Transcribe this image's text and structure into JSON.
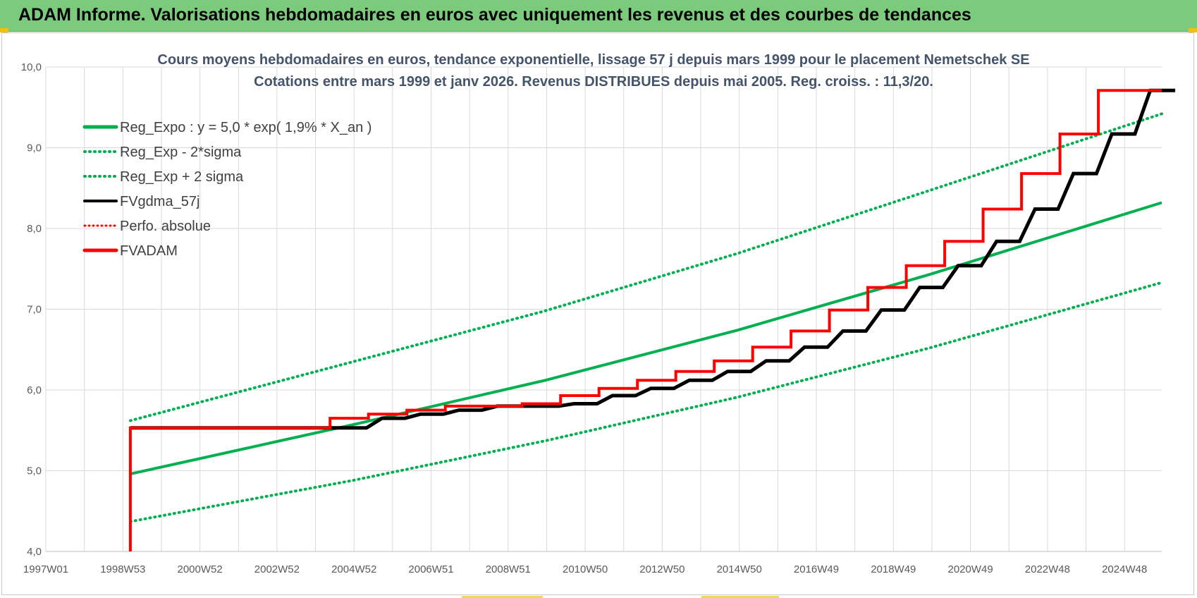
{
  "header": {
    "title": "ADAM Informe. Valorisations hebdomadaires en euros avec uniquement les revenus et des courbes de tendances"
  },
  "colors": {
    "banner": "#7ccb7d",
    "green": "#00b050",
    "black": "#000000",
    "red": "#ff0000",
    "title": "#44546a"
  },
  "chart_data": {
    "type": "line",
    "title": "Cours moyens  hebdomadaires en euros, tendance exponentielle, lissage 57 j depuis mars 1999 pour le placement Nemetschek SE",
    "subtitle": "Cotations entre mars 1999 et janv 2026. Revenus DISTRIBUES depuis mai 2005. Reg. croiss. : 11,3/20.",
    "xlabel": "",
    "ylabel": "",
    "ylim": [
      4.0,
      10.0
    ],
    "y_ticks": [
      "4,0",
      "5,0",
      "6,0",
      "7,0",
      "8,0",
      "9,0",
      "10,0"
    ],
    "x_ticks": [
      "1997W01",
      "1998W53",
      "2000W52",
      "2002W52",
      "2004W52",
      "2006W51",
      "2008W51",
      "2010W50",
      "2012W50",
      "2014W50",
      "2016W49",
      "2018W49",
      "2020W49",
      "2022W48",
      "2024W48"
    ],
    "xlim_years": [
      1997.0,
      2026.05
    ],
    "grid": true,
    "legend_position": "top-left",
    "regression": {
      "a": 5.0,
      "rate_pct": 1.9,
      "start_year": 1999.2,
      "end_year": 2026.05
    },
    "series": [
      {
        "name": "Reg_Expo : y = 5,0 * exp( 1,9% *  X_an )",
        "style": "solid",
        "color": "#00b050",
        "x": [
          1999.2,
          2005,
          2010,
          2015,
          2020,
          2026.05
        ],
        "y": [
          4.96,
          5.57,
          6.12,
          6.74,
          7.43,
          8.32
        ]
      },
      {
        "name": "Reg_Exp - 2*sigma",
        "style": "dotted",
        "color": "#00b050",
        "x": [
          1999.2,
          2005,
          2010,
          2015,
          2020,
          2026.05
        ],
        "y": [
          4.37,
          4.88,
          5.37,
          5.91,
          6.52,
          7.33
        ]
      },
      {
        "name": "Reg_Exp + 2 sigma",
        "style": "dotted",
        "color": "#00b050",
        "x": [
          1999.2,
          2005,
          2010,
          2015,
          2020,
          2026.05
        ],
        "y": [
          5.62,
          6.35,
          6.98,
          7.69,
          8.47,
          9.42
        ]
      },
      {
        "name": "FVgdma_57j",
        "style": "solid",
        "color": "#000000",
        "x": [
          1999.2,
          2004.4,
          2005.4,
          2006.4,
          2007.4,
          2008.4,
          2009.4,
          2010.4,
          2011.4,
          2012.4,
          2013.4,
          2014.4,
          2015.4,
          2016.4,
          2017.4,
          2018.4,
          2019.4,
          2020.4,
          2021.4,
          2022.4,
          2023.4,
          2024.4,
          2025.4,
          2026.05
        ],
        "y": [
          5.53,
          5.53,
          5.65,
          5.7,
          5.75,
          5.8,
          5.8,
          5.83,
          5.93,
          6.02,
          6.12,
          6.23,
          6.36,
          6.53,
          6.73,
          6.99,
          7.27,
          7.54,
          7.84,
          8.24,
          8.68,
          9.17,
          9.71,
          9.71
        ]
      },
      {
        "name": "Perfo. absolue",
        "style": "dotted",
        "color": "#ff0000",
        "x": [
          1999.2,
          2026.05
        ],
        "y": [
          5.53,
          9.71
        ]
      },
      {
        "name": "FVADAM",
        "style": "step",
        "color": "#ff0000",
        "x": [
          1999.2,
          1999.2,
          2004.4,
          2005.4,
          2006.4,
          2007.4,
          2008.4,
          2009.4,
          2010.4,
          2011.4,
          2012.4,
          2013.4,
          2014.4,
          2015.4,
          2016.4,
          2017.4,
          2018.4,
          2019.4,
          2020.4,
          2021.4,
          2022.4,
          2023.4,
          2024.4,
          2025.4,
          2026.05
        ],
        "y": [
          4.0,
          5.53,
          5.65,
          5.7,
          5.75,
          5.8,
          5.8,
          5.83,
          5.93,
          6.02,
          6.12,
          6.23,
          6.36,
          6.53,
          6.73,
          6.99,
          7.27,
          7.54,
          7.84,
          8.24,
          8.68,
          9.17,
          9.71,
          9.71,
          9.71
        ]
      }
    ]
  }
}
